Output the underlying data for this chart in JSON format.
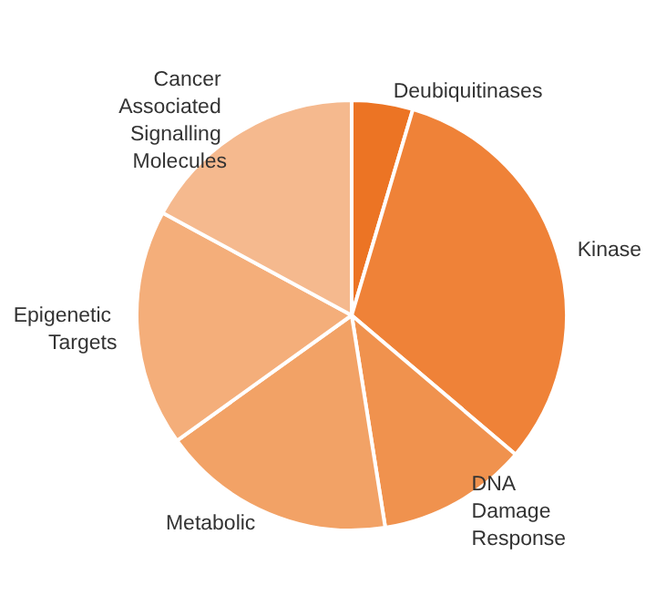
{
  "chart_data": {
    "type": "pie",
    "categories": [
      "Deubiquitinases",
      "Kinase",
      "DNA Damage Response",
      "Metabolic",
      "Epigenetic Targets",
      "Cancer Associated Signalling Molecules"
    ],
    "values": [
      4.6,
      31.6,
      11.3,
      17.6,
      17.8,
      17.1
    ],
    "colors": [
      "#ec7424",
      "#ef8238",
      "#f0924e",
      "#f2a266",
      "#f4ae7a",
      "#f5b98e"
    ],
    "legend": false
  }
}
